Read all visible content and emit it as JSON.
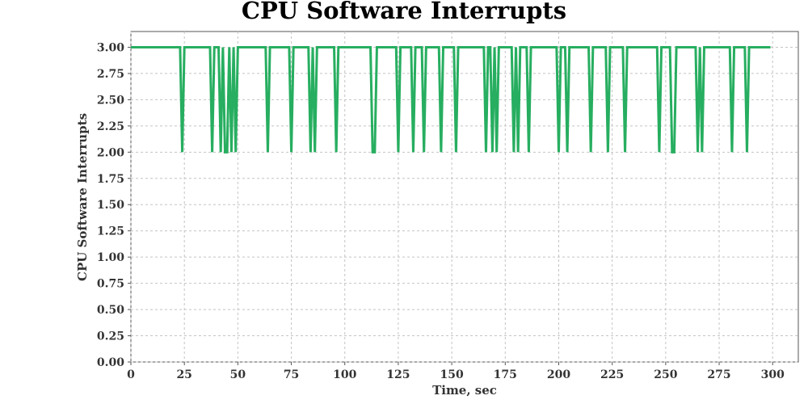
{
  "chart_data": {
    "type": "line",
    "title": "CPU Software Interrupts",
    "xlabel": "Time, sec",
    "ylabel": "CPU Software Interrupts",
    "xlim": [
      0,
      312
    ],
    "ylim": [
      0,
      3.15
    ],
    "x_ticks": [
      0,
      25,
      50,
      75,
      100,
      125,
      150,
      175,
      200,
      225,
      250,
      275,
      300
    ],
    "x_tick_labels": [
      "0",
      "25",
      "50",
      "75",
      "100",
      "125",
      "150",
      "175",
      "200",
      "225",
      "250",
      "275",
      "300"
    ],
    "y_ticks": [
      0,
      0.25,
      0.5,
      0.75,
      1.0,
      1.25,
      1.5,
      1.75,
      2.0,
      2.25,
      2.5,
      2.75,
      3.0
    ],
    "y_tick_labels": [
      "0.00",
      "0.25",
      "0.50",
      "0.75",
      "1.00",
      "1.25",
      "1.50",
      "1.75",
      "2.00",
      "2.25",
      "2.50",
      "2.75",
      "3.00"
    ],
    "grid": true,
    "legend": "none",
    "series": [
      {
        "color": "#27ae60",
        "baseline": 3,
        "x_start": 0,
        "x_end": 299,
        "dips_to_2": [
          24,
          38,
          42,
          44,
          45,
          47,
          49,
          64,
          75,
          84,
          86,
          96,
          113,
          114,
          125,
          132,
          137,
          145,
          152,
          166,
          169,
          171,
          179,
          181,
          186,
          200,
          204,
          215,
          223,
          231,
          247,
          253,
          254,
          265,
          267,
          281,
          288
        ]
      }
    ]
  }
}
